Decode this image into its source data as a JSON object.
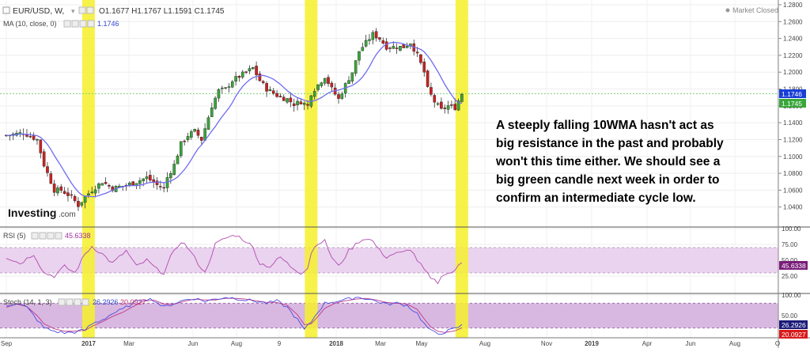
{
  "header": {
    "symbol": "EUR/USD, W,",
    "ohlc": "O1.1677  H1.1767  L1.1591  C1.1745",
    "ma": "MA (10, close, 0)",
    "ma_value": "1.1746",
    "status": "Market Closed"
  },
  "logo": {
    "text": "Investing",
    "suffix": ".com"
  },
  "annotation": {
    "lines": [
      "A steeply falling 10WMA hasn't act as",
      "big resistance in the past and probably",
      "won't this time either. We should see a",
      "big green candle next week in order to",
      "confirm an intermediate cycle low."
    ]
  },
  "rsi_panel": {
    "label": "RSI (5)",
    "value": "45.6338"
  },
  "stoch_panel": {
    "label": "Stoch (14, 1, 3)",
    "k_value": "26.2926",
    "d_value": "20.0927"
  },
  "colors": {
    "bull": "#3aa63a",
    "bear": "#cc2020",
    "ma": "#6f6cf0",
    "highlight": "#f6f02a",
    "osc_band": "#ead3ee",
    "rsi_line": "#b04bb0",
    "stoch_k": "#4a4ae0",
    "stoch_d": "#c23a8a",
    "price_label": "#1a3fd6",
    "price_label2": "#3aa63a"
  },
  "chart_data": [
    {
      "type": "candlestick",
      "title": "EUR/USD, W",
      "ylim": [
        1.02,
        1.28
      ],
      "yticks": [
        "1.2800",
        "1.2600",
        "1.2400",
        "1.2200",
        "1.2000",
        "1.1800",
        "1.1600",
        "1.1400",
        "1.1200",
        "1.1000",
        "1.0800",
        "1.0600",
        "1.0400"
      ],
      "x_labels": [
        "Sep",
        "2017",
        "Mar",
        "Jun",
        "Aug",
        "9",
        "2018",
        "Mar",
        "May",
        "Aug",
        "Nov",
        "2019",
        "Apr",
        "Jun",
        "Aug",
        "O"
      ],
      "last_price_labels": [
        "1.1746",
        "1.1745"
      ],
      "highlighted_weeks": [
        24,
        89,
        133
      ],
      "series_ma_name": "MA (10, close, 0)",
      "anchors": [
        [
          0,
          1.125
        ],
        [
          5,
          1.128
        ],
        [
          9,
          1.12
        ],
        [
          11,
          1.09
        ],
        [
          14,
          1.06
        ],
        [
          16,
          1.06
        ],
        [
          19,
          1.052
        ],
        [
          21,
          1.042
        ],
        [
          23,
          1.052
        ],
        [
          25,
          1.06
        ],
        [
          28,
          1.07
        ],
        [
          31,
          1.062
        ],
        [
          35,
          1.066
        ],
        [
          38,
          1.07
        ],
        [
          41,
          1.075
        ],
        [
          44,
          1.066
        ],
        [
          46,
          1.062
        ],
        [
          47,
          1.075
        ],
        [
          49,
          1.09
        ],
        [
          51,
          1.115
        ],
        [
          53,
          1.125
        ],
        [
          55,
          1.13
        ],
        [
          57,
          1.12
        ],
        [
          60,
          1.16
        ],
        [
          62,
          1.178
        ],
        [
          64,
          1.18
        ],
        [
          66,
          1.19
        ],
        [
          68,
          1.195
        ],
        [
          70,
          1.2
        ],
        [
          72,
          1.205
        ],
        [
          74,
          1.19
        ],
        [
          76,
          1.18
        ],
        [
          78,
          1.175
        ],
        [
          80,
          1.17
        ],
        [
          82,
          1.168
        ],
        [
          84,
          1.162
        ],
        [
          86,
          1.165
        ],
        [
          88,
          1.16
        ],
        [
          89,
          1.175
        ],
        [
          91,
          1.185
        ],
        [
          93,
          1.195
        ],
        [
          95,
          1.18
        ],
        [
          97,
          1.168
        ],
        [
          99,
          1.185
        ],
        [
          101,
          1.2
        ],
        [
          103,
          1.225
        ],
        [
          105,
          1.235
        ],
        [
          107,
          1.245
        ],
        [
          109,
          1.24
        ],
        [
          111,
          1.23
        ],
        [
          113,
          1.23
        ],
        [
          116,
          1.23
        ],
        [
          118,
          1.235
        ],
        [
          120,
          1.22
        ],
        [
          122,
          1.2
        ],
        [
          123,
          1.18
        ],
        [
          125,
          1.165
        ],
        [
          127,
          1.155
        ],
        [
          129,
          1.16
        ],
        [
          131,
          1.158
        ],
        [
          133,
          1.1745
        ]
      ]
    },
    {
      "type": "line",
      "title": "RSI (5)",
      "ylim": [
        0,
        100
      ],
      "yticks": [
        "100.00",
        "75.00",
        "50.00",
        "25.00"
      ],
      "band": [
        30,
        70
      ],
      "last_value": 45.6338,
      "anchors": [
        [
          0,
          55
        ],
        [
          4,
          45
        ],
        [
          8,
          60
        ],
        [
          11,
          30
        ],
        [
          14,
          25
        ],
        [
          17,
          40
        ],
        [
          20,
          30
        ],
        [
          23,
          60
        ],
        [
          25,
          72
        ],
        [
          28,
          60
        ],
        [
          31,
          45
        ],
        [
          35,
          65
        ],
        [
          38,
          40
        ],
        [
          41,
          50
        ],
        [
          44,
          35
        ],
        [
          46,
          30
        ],
        [
          48,
          55
        ],
        [
          51,
          80
        ],
        [
          53,
          70
        ],
        [
          56,
          45
        ],
        [
          58,
          30
        ],
        [
          61,
          75
        ],
        [
          64,
          85
        ],
        [
          67,
          90
        ],
        [
          70,
          80
        ],
        [
          72,
          70
        ],
        [
          74,
          45
        ],
        [
          77,
          40
        ],
        [
          80,
          55
        ],
        [
          83,
          40
        ],
        [
          86,
          30
        ],
        [
          88,
          38
        ],
        [
          89,
          62
        ],
        [
          91,
          78
        ],
        [
          93,
          80
        ],
        [
          95,
          55
        ],
        [
          97,
          40
        ],
        [
          100,
          65
        ],
        [
          103,
          80
        ],
        [
          105,
          85
        ],
        [
          107,
          80
        ],
        [
          109,
          65
        ],
        [
          111,
          55
        ],
        [
          113,
          60
        ],
        [
          116,
          62
        ],
        [
          118,
          68
        ],
        [
          120,
          50
        ],
        [
          122,
          35
        ],
        [
          124,
          20
        ],
        [
          126,
          15
        ],
        [
          128,
          30
        ],
        [
          130,
          30
        ],
        [
          133,
          45.6338
        ]
      ]
    },
    {
      "type": "line",
      "title": "Stoch (14, 1, 3)",
      "ylim": [
        0,
        100
      ],
      "yticks": [
        "100.00",
        "50.00"
      ],
      "band": [
        20,
        80
      ],
      "last_values": {
        "k": 26.2926,
        "d": 20.0927
      },
      "anchors_k": [
        [
          0,
          75
        ],
        [
          3,
          80
        ],
        [
          6,
          70
        ],
        [
          9,
          40
        ],
        [
          11,
          20
        ],
        [
          14,
          12
        ],
        [
          17,
          8
        ],
        [
          20,
          10
        ],
        [
          23,
          15
        ],
        [
          25,
          30
        ],
        [
          28,
          40
        ],
        [
          31,
          55
        ],
        [
          34,
          65
        ],
        [
          37,
          80
        ],
        [
          40,
          92
        ],
        [
          43,
          88
        ],
        [
          46,
          70
        ],
        [
          49,
          80
        ],
        [
          52,
          88
        ],
        [
          55,
          92
        ],
        [
          58,
          85
        ],
        [
          61,
          90
        ],
        [
          64,
          95
        ],
        [
          67,
          92
        ],
        [
          70,
          88
        ],
        [
          73,
          85
        ],
        [
          76,
          80
        ],
        [
          79,
          85
        ],
        [
          82,
          70
        ],
        [
          85,
          40
        ],
        [
          87,
          15
        ],
        [
          89,
          35
        ],
        [
          91,
          60
        ],
        [
          93,
          80
        ],
        [
          96,
          85
        ],
        [
          99,
          88
        ],
        [
          102,
          95
        ],
        [
          105,
          92
        ],
        [
          108,
          85
        ],
        [
          111,
          78
        ],
        [
          114,
          80
        ],
        [
          117,
          75
        ],
        [
          120,
          55
        ],
        [
          122,
          30
        ],
        [
          124,
          12
        ],
        [
          126,
          6
        ],
        [
          128,
          10
        ],
        [
          131,
          18
        ],
        [
          133,
          26.2926
        ]
      ],
      "anchors_d": [
        [
          0,
          70
        ],
        [
          3,
          78
        ],
        [
          6,
          72
        ],
        [
          9,
          50
        ],
        [
          11,
          30
        ],
        [
          14,
          18
        ],
        [
          17,
          12
        ],
        [
          20,
          12
        ],
        [
          23,
          14
        ],
        [
          25,
          24
        ],
        [
          28,
          35
        ],
        [
          31,
          48
        ],
        [
          34,
          58
        ],
        [
          37,
          72
        ],
        [
          40,
          85
        ],
        [
          43,
          88
        ],
        [
          46,
          78
        ],
        [
          49,
          78
        ],
        [
          52,
          85
        ],
        [
          55,
          90
        ],
        [
          58,
          88
        ],
        [
          61,
          88
        ],
        [
          64,
          92
        ],
        [
          67,
          92
        ],
        [
          70,
          90
        ],
        [
          73,
          86
        ],
        [
          76,
          82
        ],
        [
          79,
          82
        ],
        [
          82,
          75
        ],
        [
          85,
          52
        ],
        [
          87,
          28
        ],
        [
          89,
          30
        ],
        [
          91,
          48
        ],
        [
          93,
          68
        ],
        [
          96,
          80
        ],
        [
          99,
          86
        ],
        [
          102,
          90
        ],
        [
          105,
          92
        ],
        [
          108,
          88
        ],
        [
          111,
          82
        ],
        [
          114,
          80
        ],
        [
          117,
          78
        ],
        [
          120,
          65
        ],
        [
          122,
          42
        ],
        [
          124,
          22
        ],
        [
          126,
          12
        ],
        [
          128,
          9
        ],
        [
          131,
          13
        ],
        [
          133,
          20.0927
        ]
      ]
    }
  ]
}
